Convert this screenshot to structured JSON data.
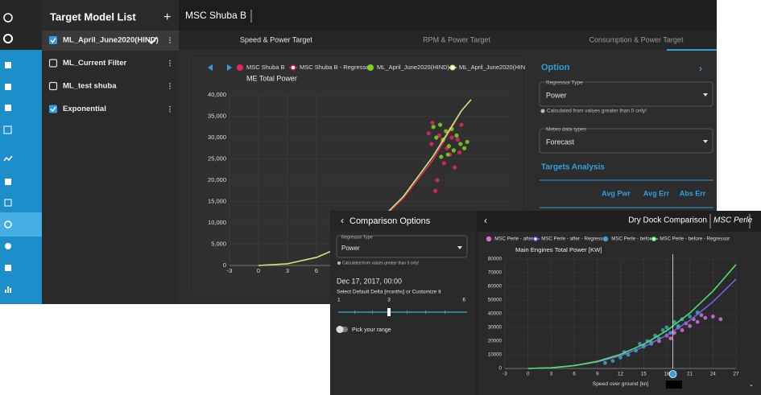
{
  "model_list": {
    "title": "Target Model List",
    "add": "+",
    "items": [
      {
        "label": "ML_April_June2020(HIND)",
        "checked": true,
        "active": true
      },
      {
        "label": "ML_Current Filter",
        "checked": false
      },
      {
        "label": "ML_test shuba",
        "checked": false
      },
      {
        "label": "Exponential",
        "checked": true
      }
    ]
  },
  "main": {
    "vessel": "MSC Shuba B",
    "tabs": [
      "Speed & Power Target",
      "RPM & Power Target",
      "Consumption & Power Target"
    ],
    "option": {
      "title": "Option",
      "regressor_label": "Regressor Type",
      "regressor_value": "Power",
      "note": "Calculated from values greater than 0 only!",
      "meteo_label": "Meteo data types",
      "meteo_value": "Forecast",
      "targets_title": "Targets Analysis",
      "columns": [
        "Avg Pwr",
        "Avg Err",
        "Abs Err"
      ]
    },
    "chart": {
      "type": "scatter",
      "title": "ME Total Power",
      "grid": true,
      "xlim": [
        -3,
        26
      ],
      "xticks": [
        -3,
        0,
        3,
        6
      ],
      "ylim": [
        0,
        40000
      ],
      "yticks": [
        0,
        {
          "value": 5000,
          "label": "5,000"
        },
        {
          "value": 10000,
          "label": "10,000"
        },
        {
          "value": 15000,
          "label": "15,000"
        },
        {
          "value": 20000,
          "label": "20,000"
        },
        {
          "value": 25000,
          "label": "25,000"
        },
        {
          "value": 30000,
          "label": "30,000"
        },
        {
          "value": 35000,
          "label": "35,000"
        },
        {
          "value": 40000,
          "label": "40,000"
        }
      ],
      "series": [
        {
          "name": "MSC Shuba B",
          "mode": "markers",
          "color": "#e8265a",
          "x": [
            17.6,
            18.0,
            18.3,
            18.7,
            19.0,
            19.2,
            19.5,
            19.8,
            20.0,
            20.3,
            20.6,
            21.0,
            18.5,
            19.9,
            20.8,
            17.9
          ],
          "values": [
            31000,
            33500,
            17500,
            30500,
            29000,
            24000,
            27500,
            26000,
            30000,
            23000,
            29500,
            33000,
            20000,
            32000,
            26500,
            28500
          ]
        },
        {
          "name": "MSC Shuba B - Regressor",
          "mode": "line",
          "color": "#e8265a",
          "x": [
            0,
            3,
            6,
            9,
            12,
            15,
            18,
            21
          ],
          "values": [
            0,
            400,
            1900,
            4700,
            9200,
            15800,
            24600,
            36200
          ]
        },
        {
          "name": "ML_April_June2020(HIND)",
          "mode": "markers",
          "color": "#7ed321",
          "x": [
            18.1,
            18.4,
            18.8,
            19.1,
            19.4,
            19.7,
            20.0,
            20.2,
            20.5,
            20.9,
            21.3,
            18.9,
            19.6,
            21.6
          ],
          "values": [
            32500,
            30000,
            33000,
            29500,
            31500,
            28000,
            32000,
            27000,
            30500,
            28500,
            27500,
            25500,
            26000,
            29000
          ]
        },
        {
          "name": "ML_April_June2020(HIN",
          "mode": "line",
          "color": "#b8f07a",
          "x": [
            0,
            3,
            6,
            9,
            12,
            15,
            18,
            21,
            22
          ],
          "values": [
            0,
            400,
            1900,
            4800,
            9400,
            16200,
            25400,
            36300,
            38900
          ]
        }
      ]
    }
  },
  "comparison": {
    "title": "Dry Dock Comparison",
    "vessel": "MSC Perle",
    "options": {
      "title": "Comparison Options",
      "regressor_label": "Regressor Type",
      "regressor_value": "Power",
      "note": "Calculated from values greater than 0 only!",
      "date": "Dec 17, 2017, 00:00",
      "delta_label": "Select Default Delta [months] or Customize It",
      "slider_labels": [
        "1",
        "3",
        "6"
      ],
      "range_label": "Pick your range"
    },
    "chart": {
      "type": "scatter",
      "title": "Main Engines Total Power [KW]",
      "x_label": "Speed over ground [kn]",
      "grid": true,
      "cursor_x": 18.8,
      "xlim": [
        -3,
        27
      ],
      "xticks": [
        -3,
        0,
        3,
        6,
        9,
        12,
        15,
        18,
        21,
        24,
        27
      ],
      "ylim": [
        0,
        80000
      ],
      "yticks": [
        0,
        10000,
        20000,
        30000,
        40000,
        50000,
        60000,
        70000,
        80000
      ],
      "series": [
        {
          "name": "MSC Perle - after",
          "mode": "markers",
          "color": "#d86fd6",
          "x": [
            15,
            16,
            17,
            18,
            19,
            19.5,
            20,
            20.5,
            21,
            21.5,
            22,
            23,
            24,
            25,
            18.5,
            22.5
          ],
          "values": [
            17000,
            19000,
            20000,
            24000,
            26000,
            30000,
            28000,
            33000,
            31000,
            36000,
            34000,
            37000,
            38000,
            36000,
            22000,
            39000
          ]
        },
        {
          "name": "MSC Perle - after - Regressor",
          "mode": "line",
          "color": "#7a5de8",
          "x": [
            0,
            3,
            6,
            9,
            12,
            15,
            18,
            21,
            24,
            27
          ],
          "values": [
            0,
            500,
            2000,
            4800,
            9300,
            15700,
            24200,
            35100,
            48700,
            65300
          ]
        },
        {
          "name": "MSC Perle - before",
          "mode": "markers",
          "color": "#34a7c2",
          "x": [
            10,
            11,
            12,
            13,
            14,
            15,
            15.5,
            16,
            16.5,
            17,
            17.5,
            18,
            18.5,
            19,
            19.5,
            20,
            21,
            22,
            12.5,
            14.5
          ],
          "values": [
            4000,
            5500,
            8000,
            10000,
            13000,
            16000,
            20000,
            18000,
            24000,
            22000,
            28000,
            30000,
            26000,
            34000,
            31000,
            36000,
            38000,
            41000,
            12000,
            18000
          ]
        },
        {
          "name": "MSC Perle - before - Regressor",
          "mode": "line",
          "color": "#4ee06a",
          "x": [
            0,
            3,
            6,
            9,
            12,
            15,
            18,
            21,
            24,
            27
          ],
          "values": [
            0,
            500,
            2100,
            5200,
            10300,
            17600,
            27600,
            40500,
            56500,
            76000
          ]
        }
      ]
    }
  }
}
